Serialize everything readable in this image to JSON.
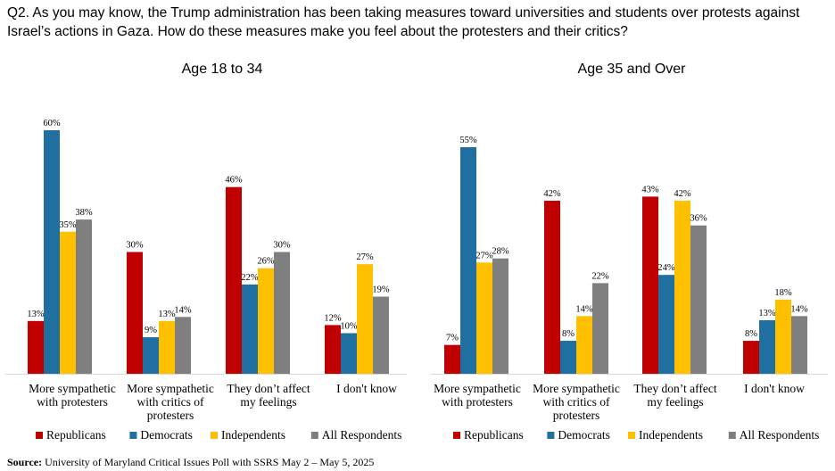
{
  "question": "Q2. As you may know, the Trump administration has been taking measures toward universities and students over protests against Israel’s actions in Gaza. How do these measures make you feel about the protesters and their critics?",
  "source_label": "Source:",
  "source_text": "University of Maryland Critical Issues Poll with SSRS May 2 – May 5, 2025",
  "colors": {
    "Republicans": "#c00000",
    "Democrats": "#1f6fa0",
    "Independents": "#ffc000",
    "All Respondents": "#7f7f7f"
  },
  "chart_data": [
    {
      "type": "bar",
      "title": "Age 18 to 34",
      "categories": [
        [
          "More sympathetic",
          "with protesters"
        ],
        [
          "More sympathetic",
          "with critics of",
          "protesters"
        ],
        [
          "They don’t affect",
          "my feelings"
        ],
        [
          "I don't know"
        ]
      ],
      "series": [
        {
          "name": "Republicans",
          "values": [
            13,
            30,
            46,
            12
          ]
        },
        {
          "name": "Democrats",
          "values": [
            60,
            9,
            22,
            10
          ]
        },
        {
          "name": "Independents",
          "values": [
            35,
            13,
            26,
            27
          ]
        },
        {
          "name": "All Respondents",
          "values": [
            38,
            14,
            30,
            19
          ]
        }
      ],
      "value_suffix": "%",
      "ylim": [
        0,
        60
      ],
      "grid": false,
      "legend": "bottom"
    },
    {
      "type": "bar",
      "title": "Age 35 and Over",
      "categories": [
        [
          "More sympathetic",
          "with protesters"
        ],
        [
          "More sympathetic",
          "with critics of",
          "protesters"
        ],
        [
          "They don’t affect",
          "my feelings"
        ],
        [
          "I don't know"
        ]
      ],
      "series": [
        {
          "name": "Republicans",
          "values": [
            7,
            42,
            43,
            8
          ]
        },
        {
          "name": "Democrats",
          "values": [
            55,
            8,
            24,
            13
          ]
        },
        {
          "name": "Independents",
          "values": [
            27,
            14,
            42,
            18
          ]
        },
        {
          "name": "All Respondents",
          "values": [
            28,
            22,
            36,
            14
          ]
        }
      ],
      "value_suffix": "%",
      "ylim": [
        0,
        55
      ],
      "grid": false,
      "legend": "bottom"
    }
  ]
}
